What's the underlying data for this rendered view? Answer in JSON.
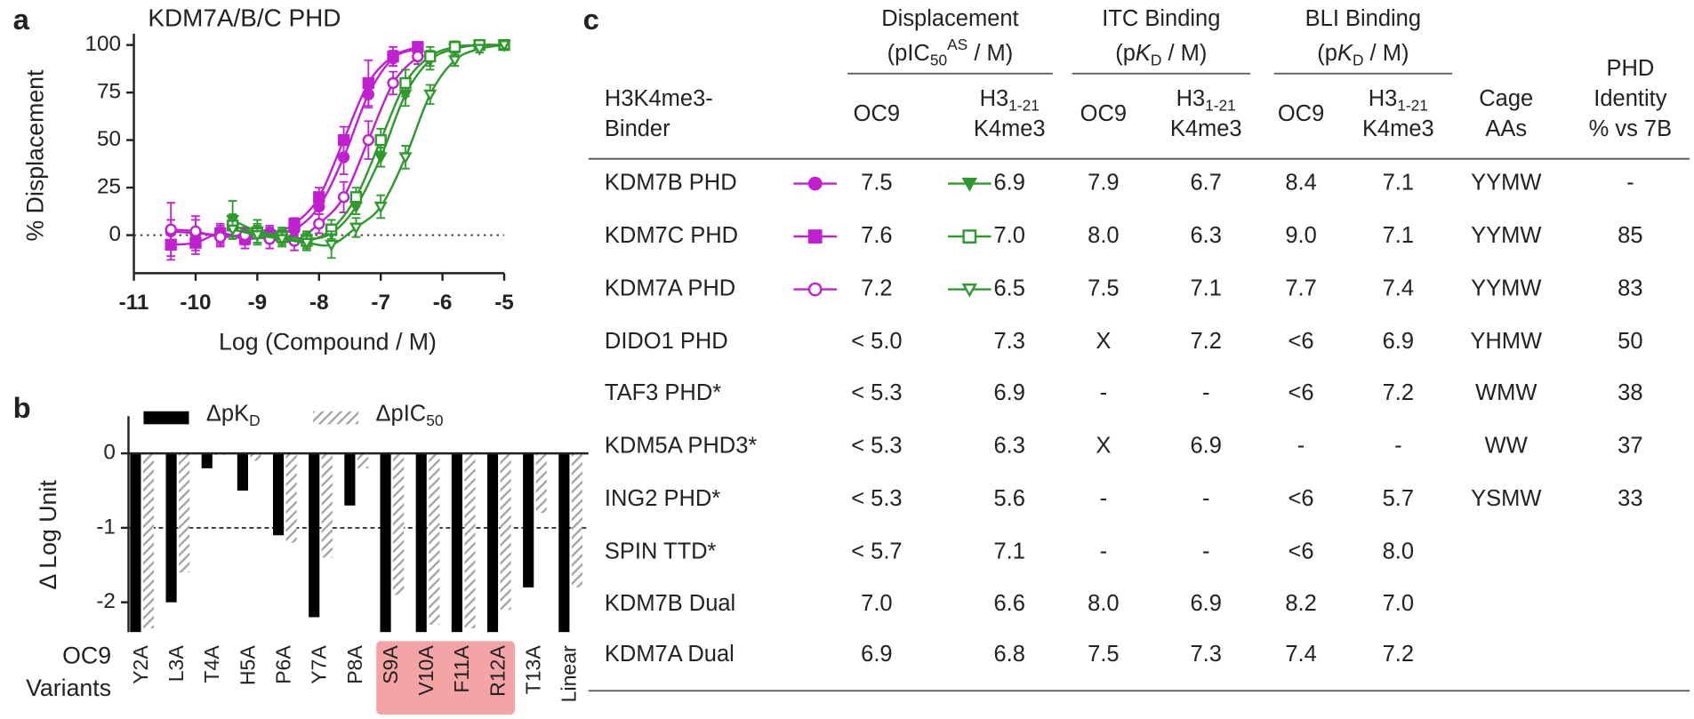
{
  "panel_labels": [
    "a",
    "b",
    "c"
  ],
  "chart_data": [
    {
      "type": "line",
      "title": "KDM7A/B/C PHD",
      "xlabel": "Log (Compound / M)",
      "ylabel": "% Displacement",
      "xlim": [
        -11,
        -5
      ],
      "xticks": [
        -11,
        -10,
        -9,
        -8,
        -7,
        -6,
        -5
      ],
      "ylim": [
        -20,
        106
      ],
      "yticks": [
        0,
        25,
        50,
        75,
        100
      ],
      "hline": 0,
      "series": [
        {
          "color": "#c020d0",
          "marker": "circle",
          "x": [
            -10.4,
            -10.0,
            -9.6,
            -9.2,
            -8.8,
            -8.4,
            -8.0,
            -7.6,
            -7.2,
            -6.8,
            -6.4
          ],
          "values": [
            2,
            1,
            0,
            -1,
            1,
            3,
            15,
            41,
            74,
            93,
            98
          ],
          "errors": [
            6,
            9,
            5,
            4,
            4,
            3,
            4,
            9,
            7,
            4,
            3
          ]
        },
        {
          "color": "#c020d0",
          "marker": "square",
          "x": [
            -10.4,
            -10.0,
            -9.6,
            -9.2,
            -8.8,
            -8.4,
            -8.0,
            -7.6,
            -7.2,
            -6.8,
            -6.4
          ],
          "values": [
            -5,
            -4,
            1,
            -2,
            0,
            6,
            20,
            50,
            80,
            94,
            99
          ],
          "errors": [
            8,
            6,
            5,
            5,
            4,
            3,
            5,
            7,
            12,
            5,
            2
          ]
        },
        {
          "color": "#c020d0",
          "marker": "circle-open",
          "x": [
            -10.4,
            -10.0,
            -9.6,
            -9.2,
            -8.8,
            -8.4,
            -8.0,
            -7.6,
            -7.2,
            -6.8,
            -6.4
          ],
          "values": [
            3,
            2,
            -1,
            0,
            -2,
            -3,
            6,
            20,
            50,
            80,
            94
          ],
          "errors": [
            14,
            6,
            5,
            4,
            5,
            5,
            5,
            8,
            10,
            6,
            4
          ]
        },
        {
          "color": "#2e9a2e",
          "marker": "triangle-down",
          "x": [
            -9.4,
            -9.0,
            -8.6,
            -8.2,
            -7.8,
            -7.4,
            -7.0,
            -6.6,
            -6.2,
            -5.8,
            -5.4,
            -5.0
          ],
          "values": [
            8,
            2,
            0,
            -2,
            1,
            15,
            41,
            74,
            92,
            98,
            100,
            100
          ],
          "errors": [
            10,
            6,
            4,
            4,
            4,
            4,
            5,
            6,
            5,
            3,
            2,
            2
          ]
        },
        {
          "color": "#2e9a2e",
          "marker": "square-open",
          "x": [
            -9.4,
            -9.0,
            -8.6,
            -8.2,
            -7.8,
            -7.4,
            -7.0,
            -6.6,
            -6.2,
            -5.8,
            -5.4,
            -5.0
          ],
          "values": [
            5,
            1,
            -1,
            -3,
            3,
            20,
            50,
            80,
            94,
            99,
            100,
            100
          ],
          "errors": [
            6,
            5,
            4,
            4,
            5,
            5,
            6,
            7,
            5,
            3,
            2,
            2
          ]
        },
        {
          "color": "#2e9a2e",
          "marker": "triangle-down-open",
          "x": [
            -9.4,
            -9.0,
            -8.6,
            -8.2,
            -7.8,
            -7.4,
            -7.0,
            -6.6,
            -6.2,
            -5.8,
            -5.4,
            -5.0
          ],
          "values": [
            3,
            0,
            -2,
            -4,
            -5,
            4,
            15,
            41,
            74,
            92,
            98,
            100
          ],
          "errors": [
            5,
            5,
            4,
            4,
            7,
            5,
            6,
            6,
            5,
            3,
            2,
            2
          ]
        }
      ]
    },
    {
      "type": "bar",
      "ylabel": "Δ Log Unit",
      "xlabel_lines": [
        "OC9",
        "Variants"
      ],
      "categories": [
        "Y2A",
        "L3A",
        "T4A",
        "H5A",
        "P6A",
        "Y7A",
        "P8A",
        "S9A",
        "V10A",
        "F11A",
        "R12A",
        "T13A",
        "Linear"
      ],
      "ylim": [
        -2.4,
        0.5
      ],
      "yticks": [
        -2,
        -1,
        0
      ],
      "hline": -1,
      "highlight": [
        7,
        8,
        9,
        10
      ],
      "highlight_color": "#f4a4a4",
      "legend": "top-left",
      "series": [
        {
          "name": [
            {
              "text": "ΔpK"
            },
            {
              "sub": "D"
            }
          ],
          "color": "#000000",
          "values": [
            -2.4,
            -2.0,
            -0.2,
            -0.5,
            -1.1,
            -2.2,
            -0.7,
            -2.4,
            -2.4,
            -2.4,
            -2.4,
            -1.8,
            -2.4
          ]
        },
        {
          "name": [
            {
              "text": "ΔpIC"
            },
            {
              "sub": "50"
            }
          ],
          "color": "#a6a6a6",
          "pattern": "hatch",
          "values": [
            -2.35,
            -1.6,
            -0.02,
            -0.1,
            -1.2,
            -1.4,
            -0.2,
            -1.9,
            -2.3,
            -2.35,
            -2.1,
            -0.8,
            -1.8
          ]
        }
      ]
    }
  ],
  "table": {
    "corner": [
      [
        {
          "text": "H3K4me3-"
        }
      ],
      [
        {
          "text": "Binder"
        }
      ]
    ],
    "groups": [
      {
        "lines": [
          [
            {
              "text": "Displacement"
            }
          ],
          [
            {
              "text": "(pIC"
            },
            {
              "sub": "50"
            },
            {
              "sup": "AS"
            },
            {
              "text": " / M)"
            }
          ]
        ]
      },
      {
        "lines": [
          [
            {
              "text": "ITC Binding"
            }
          ],
          [
            {
              "text": "(p"
            },
            {
              "italic": "K"
            },
            {
              "sub": "D"
            },
            {
              "text": " / M)"
            }
          ]
        ]
      },
      {
        "lines": [
          [
            {
              "text": "BLI Binding"
            }
          ],
          [
            {
              "text": "(p"
            },
            {
              "italic": "K"
            },
            {
              "sub": "D"
            },
            {
              "text": " / M)"
            }
          ]
        ]
      }
    ],
    "columns": [
      [
        [
          {
            "text": "OC9"
          }
        ]
      ],
      [
        [
          {
            "text": "H3"
          },
          {
            "sub": "1-21"
          }
        ],
        [
          {
            "text": "K4me3"
          }
        ]
      ],
      [
        [
          {
            "text": "OC9"
          }
        ]
      ],
      [
        [
          {
            "text": "H3"
          },
          {
            "sub": "1-21"
          }
        ],
        [
          {
            "text": "K4me3"
          }
        ]
      ],
      [
        [
          {
            "text": "OC9"
          }
        ]
      ],
      [
        [
          {
            "text": "H3"
          },
          {
            "sub": "1-21"
          }
        ],
        [
          {
            "text": "K4me3"
          }
        ]
      ],
      [
        [
          {
            "text": "Cage"
          }
        ],
        [
          {
            "text": "AAs"
          }
        ]
      ],
      [
        [
          {
            "text": "PHD"
          }
        ],
        [
          {
            "text": "Identity"
          }
        ],
        [
          {
            "text": "% vs 7B"
          }
        ]
      ]
    ],
    "rows": [
      [
        "KDM7B PHD",
        "7.5",
        "6.9",
        "7.9",
        "6.7",
        "8.4",
        "7.1",
        "YYMW",
        "-"
      ],
      [
        "KDM7C PHD",
        "7.6",
        "7.0",
        "8.0",
        "6.3",
        "9.0",
        "7.1",
        "YYMW",
        "85"
      ],
      [
        "KDM7A PHD",
        "7.2",
        "6.5",
        "7.5",
        "7.1",
        "7.7",
        "7.4",
        "YYMW",
        "83"
      ],
      [
        "DIDO1 PHD",
        "< 5.0",
        "7.3",
        "X",
        "7.2",
        "<6",
        "6.9",
        "YHMW",
        "50"
      ],
      [
        "TAF3 PHD*",
        "< 5.3",
        "6.9",
        "-",
        "-",
        "<6",
        "7.2",
        "WMW",
        "38"
      ],
      [
        "KDM5A PHD3*",
        "< 5.3",
        "6.3",
        "X",
        "6.9",
        "-",
        "-",
        "WW",
        "37"
      ],
      [
        "ING2 PHD*",
        "< 5.3",
        "5.6",
        "-",
        "-",
        "<6",
        "5.7",
        "YSMW",
        "33"
      ],
      [
        "SPIN TTD*",
        "< 5.7",
        "7.1",
        "-",
        "-",
        "<6",
        "8.0",
        null,
        null
      ],
      [
        "KDM7B Dual",
        "7.0",
        "6.6",
        "8.0",
        "6.9",
        "8.2",
        "7.0",
        null,
        null
      ],
      [
        "KDM7A Dual",
        "6.9",
        "6.8",
        "7.5",
        "7.3",
        "7.4",
        "7.2",
        null,
        null
      ]
    ]
  }
}
